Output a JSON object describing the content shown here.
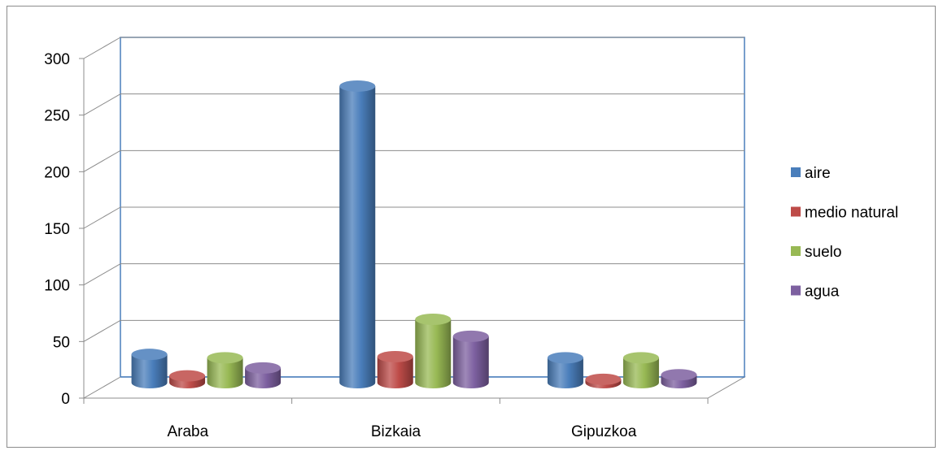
{
  "chart_data": {
    "type": "bar",
    "categories": [
      "Araba",
      "Bizkaia",
      "Gipuzkoa"
    ],
    "series": [
      {
        "name": "aire",
        "values": [
          25,
          262,
          22
        ]
      },
      {
        "name": "medio natural",
        "values": [
          6,
          23,
          3
        ]
      },
      {
        "name": "suelo",
        "values": [
          22,
          56,
          22
        ]
      },
      {
        "name": "agua",
        "values": [
          13,
          41,
          7
        ]
      }
    ],
    "ylim": [
      0,
      300
    ],
    "yticks": [
      "0",
      "50",
      "100",
      "150",
      "200",
      "250",
      "300"
    ],
    "legend_position": "right",
    "colors": [
      "#4a7ebb",
      "#be4b48",
      "#98b954",
      "#7d60a0"
    ],
    "grid": true,
    "style": "3d-cylinder"
  }
}
